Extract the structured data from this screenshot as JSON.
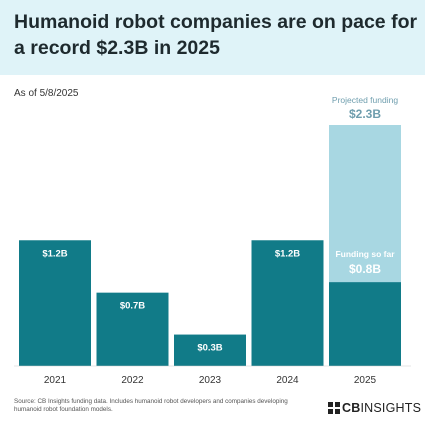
{
  "title": "Humanoid robot companies are on pace for a record $2.3B in 2025",
  "as_of": "As of 5/8/2025",
  "source": "Source: CB Insights funding data. Includes humanoid robot developers and companies developing humanoid robot foundation models.",
  "logo": {
    "cb": "CB",
    "rest": "INSIGHTS"
  },
  "colors": {
    "bar": "#117b88",
    "projected": "#a8d7e2",
    "projected_text": "#6f9eae",
    "header_bg": "#dff3f8"
  },
  "chart_data": {
    "type": "bar",
    "categories": [
      "2021",
      "2022",
      "2023",
      "2024",
      "2025"
    ],
    "series": [
      {
        "name": "Funding so far",
        "values": [
          1.2,
          0.7,
          0.3,
          1.2,
          0.8
        ]
      },
      {
        "name": "Projected funding",
        "values": [
          null,
          null,
          null,
          null,
          2.3
        ]
      }
    ],
    "data_labels": [
      "$1.2B",
      "$0.7B",
      "$0.3B",
      "$1.2B",
      "$0.8B"
    ],
    "projected_label": "$2.3B",
    "annotations": {
      "projected": "Projected funding",
      "so_far": "Funding so far"
    },
    "title": "Humanoid robot companies are on pace for a record $2.3B in 2025",
    "xlabel": "",
    "ylabel": "",
    "ylim": [
      0,
      2.3
    ],
    "grid": false
  }
}
